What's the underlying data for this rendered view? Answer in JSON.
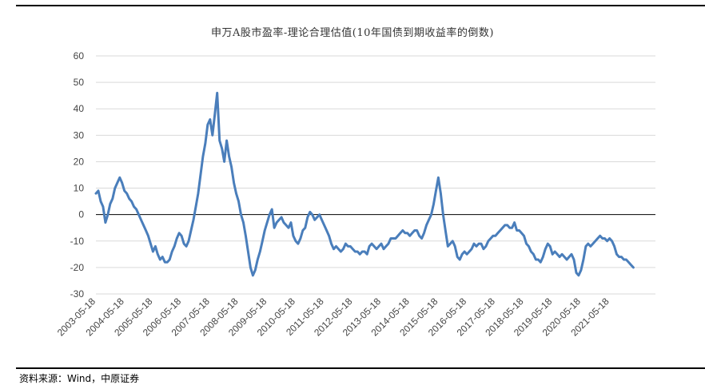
{
  "chart_data": {
    "type": "line",
    "title": "申万A股市盈率-理论合理估值(10年国债到期收益率的倒数)",
    "ylim": [
      -30,
      60
    ],
    "yticks": [
      60,
      50,
      40,
      30,
      20,
      10,
      0,
      -10,
      -20,
      -30
    ],
    "x_tick_labels": [
      "2003-05-18",
      "2004-05-18",
      "2005-05-18",
      "2006-05-18",
      "2007-05-18",
      "2008-05-18",
      "2009-05-18",
      "2010-05-18",
      "2011-05-18",
      "2012-05-18",
      "2013-05-18",
      "2014-05-18",
      "2015-05-18",
      "2016-05-18",
      "2017-05-18",
      "2018-05-18",
      "2019-05-18",
      "2020-05-18",
      "2021-05-18"
    ],
    "grid": true,
    "series": [
      {
        "color": "#4a7ebb",
        "points": [
          [
            "2003-05",
            8
          ],
          [
            "2003-06",
            9
          ],
          [
            "2003-07",
            5
          ],
          [
            "2003-08",
            3
          ],
          [
            "2003-09",
            -3
          ],
          [
            "2003-10",
            0
          ],
          [
            "2003-11",
            4
          ],
          [
            "2003-12",
            6
          ],
          [
            "2004-01",
            10
          ],
          [
            "2004-02",
            12
          ],
          [
            "2004-03",
            14
          ],
          [
            "2004-04",
            12
          ],
          [
            "2004-05",
            9
          ],
          [
            "2004-06",
            8
          ],
          [
            "2004-07",
            6
          ],
          [
            "2004-08",
            5
          ],
          [
            "2004-09",
            3
          ],
          [
            "2004-10",
            2
          ],
          [
            "2004-11",
            0
          ],
          [
            "2004-12",
            -2
          ],
          [
            "2005-01",
            -4
          ],
          [
            "2005-02",
            -6
          ],
          [
            "2005-03",
            -8
          ],
          [
            "2005-04",
            -11
          ],
          [
            "2005-05",
            -14
          ],
          [
            "2005-06",
            -12
          ],
          [
            "2005-07",
            -15
          ],
          [
            "2005-08",
            -17
          ],
          [
            "2005-09",
            -16
          ],
          [
            "2005-10",
            -18
          ],
          [
            "2005-11",
            -18
          ],
          [
            "2005-12",
            -17
          ],
          [
            "2006-01",
            -14
          ],
          [
            "2006-02",
            -12
          ],
          [
            "2006-03",
            -9
          ],
          [
            "2006-04",
            -7
          ],
          [
            "2006-05",
            -8
          ],
          [
            "2006-06",
            -11
          ],
          [
            "2006-07",
            -12
          ],
          [
            "2006-08",
            -10
          ],
          [
            "2006-09",
            -6
          ],
          [
            "2006-10",
            -2
          ],
          [
            "2006-11",
            3
          ],
          [
            "2006-12",
            8
          ],
          [
            "2007-01",
            15
          ],
          [
            "2007-02",
            22
          ],
          [
            "2007-03",
            27
          ],
          [
            "2007-04",
            34
          ],
          [
            "2007-05",
            36
          ],
          [
            "2007-06",
            30
          ],
          [
            "2007-07",
            38
          ],
          [
            "2007-08",
            46
          ],
          [
            "2007-09",
            28
          ],
          [
            "2007-10",
            25
          ],
          [
            "2007-11",
            20
          ],
          [
            "2007-12",
            28
          ],
          [
            "2008-01",
            22
          ],
          [
            "2008-02",
            18
          ],
          [
            "2008-03",
            12
          ],
          [
            "2008-04",
            8
          ],
          [
            "2008-05",
            5
          ],
          [
            "2008-06",
            0
          ],
          [
            "2008-07",
            -3
          ],
          [
            "2008-08",
            -8
          ],
          [
            "2008-09",
            -14
          ],
          [
            "2008-10",
            -20
          ],
          [
            "2008-11",
            -23
          ],
          [
            "2008-12",
            -21
          ],
          [
            "2009-01",
            -17
          ],
          [
            "2009-02",
            -14
          ],
          [
            "2009-03",
            -10
          ],
          [
            "2009-04",
            -6
          ],
          [
            "2009-05",
            -3
          ],
          [
            "2009-06",
            0
          ],
          [
            "2009-07",
            2
          ],
          [
            "2009-08",
            -5
          ],
          [
            "2009-09",
            -3
          ],
          [
            "2009-10",
            -2
          ],
          [
            "2009-11",
            -1
          ],
          [
            "2009-12",
            -3
          ],
          [
            "2010-01",
            -4
          ],
          [
            "2010-02",
            -5
          ],
          [
            "2010-03",
            -3
          ],
          [
            "2010-04",
            -8
          ],
          [
            "2010-05",
            -10
          ],
          [
            "2010-06",
            -11
          ],
          [
            "2010-07",
            -9
          ],
          [
            "2010-08",
            -6
          ],
          [
            "2010-09",
            -5
          ],
          [
            "2010-10",
            -1
          ],
          [
            "2010-11",
            1
          ],
          [
            "2010-12",
            0
          ],
          [
            "2011-01",
            -2
          ],
          [
            "2011-02",
            -1
          ],
          [
            "2011-03",
            0
          ],
          [
            "2011-04",
            -2
          ],
          [
            "2011-05",
            -4
          ],
          [
            "2011-06",
            -6
          ],
          [
            "2011-07",
            -8
          ],
          [
            "2011-08",
            -11
          ],
          [
            "2011-09",
            -13
          ],
          [
            "2011-10",
            -12
          ],
          [
            "2011-11",
            -13
          ],
          [
            "2011-12",
            -14
          ],
          [
            "2012-01",
            -13
          ],
          [
            "2012-02",
            -11
          ],
          [
            "2012-03",
            -12
          ],
          [
            "2012-04",
            -12
          ],
          [
            "2012-05",
            -13
          ],
          [
            "2012-06",
            -14
          ],
          [
            "2012-07",
            -14
          ],
          [
            "2012-08",
            -15
          ],
          [
            "2012-09",
            -14
          ],
          [
            "2012-10",
            -14
          ],
          [
            "2012-11",
            -15
          ],
          [
            "2012-12",
            -12
          ],
          [
            "2013-01",
            -11
          ],
          [
            "2013-02",
            -12
          ],
          [
            "2013-03",
            -13
          ],
          [
            "2013-04",
            -12
          ],
          [
            "2013-05",
            -11
          ],
          [
            "2013-06",
            -13
          ],
          [
            "2013-07",
            -12
          ],
          [
            "2013-08",
            -11
          ],
          [
            "2013-09",
            -9
          ],
          [
            "2013-10",
            -9
          ],
          [
            "2013-11",
            -9
          ],
          [
            "2013-12",
            -8
          ],
          [
            "2014-01",
            -7
          ],
          [
            "2014-02",
            -6
          ],
          [
            "2014-03",
            -7
          ],
          [
            "2014-04",
            -7
          ],
          [
            "2014-05",
            -8
          ],
          [
            "2014-06",
            -7
          ],
          [
            "2014-07",
            -6
          ],
          [
            "2014-08",
            -6
          ],
          [
            "2014-09",
            -8
          ],
          [
            "2014-10",
            -9
          ],
          [
            "2014-11",
            -7
          ],
          [
            "2014-12",
            -4
          ],
          [
            "2015-01",
            -2
          ],
          [
            "2015-02",
            0
          ],
          [
            "2015-03",
            4
          ],
          [
            "2015-04",
            9
          ],
          [
            "2015-05",
            14
          ],
          [
            "2015-06",
            8
          ],
          [
            "2015-07",
            0
          ],
          [
            "2015-08",
            -6
          ],
          [
            "2015-09",
            -12
          ],
          [
            "2015-10",
            -11
          ],
          [
            "2015-11",
            -10
          ],
          [
            "2015-12",
            -12
          ],
          [
            "2016-01",
            -16
          ],
          [
            "2016-02",
            -17
          ],
          [
            "2016-03",
            -15
          ],
          [
            "2016-04",
            -14
          ],
          [
            "2016-05",
            -15
          ],
          [
            "2016-06",
            -14
          ],
          [
            "2016-07",
            -13
          ],
          [
            "2016-08",
            -11
          ],
          [
            "2016-09",
            -12
          ],
          [
            "2016-10",
            -11
          ],
          [
            "2016-11",
            -11
          ],
          [
            "2016-12",
            -13
          ],
          [
            "2017-01",
            -12
          ],
          [
            "2017-02",
            -10
          ],
          [
            "2017-03",
            -9
          ],
          [
            "2017-04",
            -8
          ],
          [
            "2017-05",
            -8
          ],
          [
            "2017-06",
            -7
          ],
          [
            "2017-07",
            -6
          ],
          [
            "2017-08",
            -5
          ],
          [
            "2017-09",
            -4
          ],
          [
            "2017-10",
            -4
          ],
          [
            "2017-11",
            -5
          ],
          [
            "2017-12",
            -5
          ],
          [
            "2018-01",
            -3
          ],
          [
            "2018-02",
            -6
          ],
          [
            "2018-03",
            -6
          ],
          [
            "2018-04",
            -7
          ],
          [
            "2018-05",
            -8
          ],
          [
            "2018-06",
            -11
          ],
          [
            "2018-07",
            -12
          ],
          [
            "2018-08",
            -14
          ],
          [
            "2018-09",
            -15
          ],
          [
            "2018-10",
            -17
          ],
          [
            "2018-11",
            -17
          ],
          [
            "2018-12",
            -18
          ],
          [
            "2019-01",
            -16
          ],
          [
            "2019-02",
            -13
          ],
          [
            "2019-03",
            -11
          ],
          [
            "2019-04",
            -12
          ],
          [
            "2019-05",
            -15
          ],
          [
            "2019-06",
            -14
          ],
          [
            "2019-07",
            -15
          ],
          [
            "2019-08",
            -16
          ],
          [
            "2019-09",
            -15
          ],
          [
            "2019-10",
            -16
          ],
          [
            "2019-11",
            -17
          ],
          [
            "2019-12",
            -16
          ],
          [
            "2020-01",
            -15
          ],
          [
            "2020-02",
            -17
          ],
          [
            "2020-03",
            -22
          ],
          [
            "2020-04",
            -23
          ],
          [
            "2020-05",
            -21
          ],
          [
            "2020-06",
            -17
          ],
          [
            "2020-07",
            -12
          ],
          [
            "2020-08",
            -11
          ],
          [
            "2020-09",
            -12
          ],
          [
            "2020-10",
            -11
          ],
          [
            "2020-11",
            -10
          ],
          [
            "2020-12",
            -9
          ],
          [
            "2021-01",
            -8
          ],
          [
            "2021-02",
            -9
          ],
          [
            "2021-03",
            -9
          ],
          [
            "2021-04",
            -10
          ],
          [
            "2021-05",
            -9
          ],
          [
            "2021-06",
            -10
          ],
          [
            "2021-07",
            -12
          ],
          [
            "2021-08",
            -15
          ],
          [
            "2021-09",
            -16
          ],
          [
            "2021-10",
            -16
          ],
          [
            "2021-11",
            -17
          ],
          [
            "2021-12",
            -17
          ],
          [
            "2022-01",
            -18
          ],
          [
            "2022-02",
            -19
          ],
          [
            "2022-03",
            -20
          ]
        ]
      }
    ]
  },
  "footer": {
    "source": "资料来源：Wind，中原证券"
  }
}
